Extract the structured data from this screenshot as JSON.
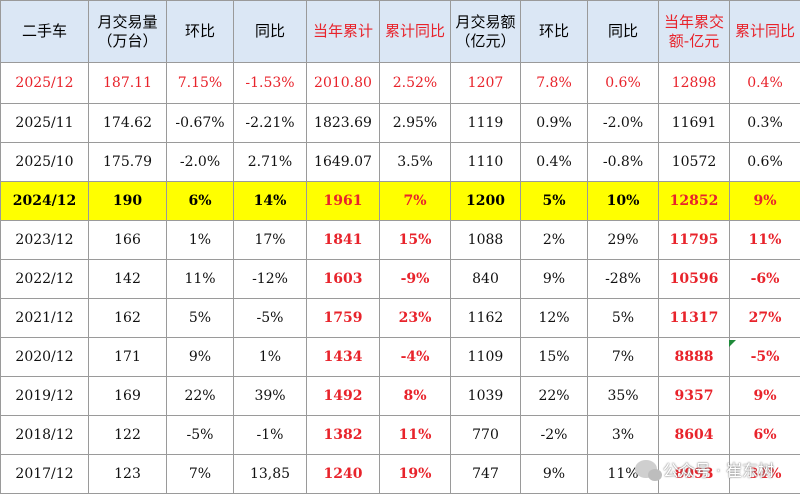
{
  "headers": [
    {
      "text": "二手车",
      "color": "black"
    },
    {
      "text": "月交易量（万台）",
      "color": "black"
    },
    {
      "text": "环比",
      "color": "black"
    },
    {
      "text": "同比",
      "color": "black"
    },
    {
      "text": "当年累计",
      "color": "red"
    },
    {
      "text": "累计同比",
      "color": "red"
    },
    {
      "text": "月交易额（亿元）",
      "color": "black"
    },
    {
      "text": "环比",
      "color": "black"
    },
    {
      "text": "同比",
      "color": "black"
    },
    {
      "text": "当年累交额-亿元",
      "color": "red"
    },
    {
      "text": "累计同比",
      "color": "red"
    }
  ],
  "rows": [
    {
      "style": "red",
      "cells": [
        "2025/12",
        "187.11",
        "7.15%",
        "-1.53%",
        "2010.80",
        "2.52%",
        "1207",
        "7.8%",
        "0.6%",
        "12898",
        "0.4%"
      ]
    },
    {
      "style": "plain",
      "cells": [
        "2025/11",
        "174.62",
        "-0.67%",
        "-2.21%",
        "1823.69",
        "2.95%",
        "1119",
        "0.9%",
        "-2.0%",
        "11691",
        "0.3%"
      ]
    },
    {
      "style": "plain",
      "cells": [
        "2025/10",
        "175.79",
        "-2.0%",
        "2.71%",
        "1649.07",
        "3.5%",
        "1110",
        "0.4%",
        "-0.8%",
        "10572",
        "0.6%"
      ]
    },
    {
      "style": "highlight",
      "cells": [
        "2024/12",
        "190",
        "6%",
        "14%",
        "1961",
        "7%",
        "1200",
        "5%",
        "10%",
        "12852",
        "9%"
      ]
    },
    {
      "style": "history",
      "cells": [
        "2023/12",
        "166",
        "1%",
        "17%",
        "1841",
        "15%",
        "1088",
        "2%",
        "29%",
        "11795",
        "11%"
      ]
    },
    {
      "style": "history",
      "cells": [
        "2022/12",
        "142",
        "11%",
        "-12%",
        "1603",
        "-9%",
        "840",
        "9%",
        "-28%",
        "10596",
        "-6%"
      ]
    },
    {
      "style": "history",
      "cells": [
        "2021/12",
        "162",
        "5%",
        "-5%",
        "1759",
        "23%",
        "1162",
        "12%",
        "5%",
        "11317",
        "27%"
      ]
    },
    {
      "style": "history",
      "cells": [
        "2020/12",
        "171",
        "9%",
        "1%",
        "1434",
        "-4%",
        "1109",
        "15%",
        "7%",
        "8888",
        "-5%"
      ]
    },
    {
      "style": "history",
      "cells": [
        "2019/12",
        "169",
        "22%",
        "39%",
        "1492",
        "8%",
        "1039",
        "22%",
        "35%",
        "9357",
        "9%"
      ]
    },
    {
      "style": "history",
      "cells": [
        "2018/12",
        "122",
        "-5%",
        "-1%",
        "1382",
        "11%",
        "770",
        "-2%",
        "3%",
        "8604",
        "6%"
      ]
    },
    {
      "style": "history",
      "cells": [
        "2017/12",
        "123",
        "7%",
        "13,85",
        "1240",
        "19%",
        "747",
        "9%",
        "11%",
        "8093",
        "34%"
      ]
    }
  ],
  "watermark": {
    "text": "公众号 · 崔东树",
    "icon": "wechat-icon"
  },
  "colors": {
    "header_bg": "#dbe7f5",
    "highlight_bg": "#ffff00",
    "red": "#e8232b",
    "border": "#9a9a9a"
  }
}
